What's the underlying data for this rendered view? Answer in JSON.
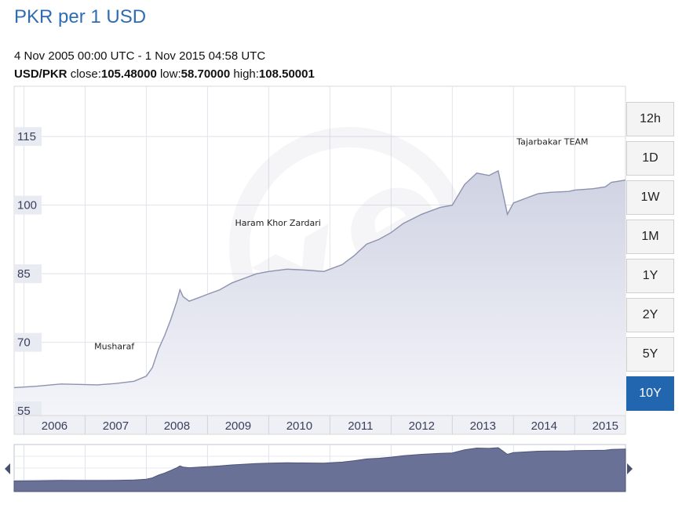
{
  "header": {
    "title": "PKR per 1 USD",
    "date_range": "4 Nov 2005 00:00 UTC - 1 Nov 2015 04:58 UTC",
    "pair": "USD/PKR",
    "close_label": "close:",
    "close_value": "105.48000",
    "low_label": "low:",
    "low_value": "58.70000",
    "high_label": "high:",
    "high_value": "108.50001"
  },
  "range_buttons": [
    "12h",
    "1D",
    "1W",
    "1M",
    "1Y",
    "2Y",
    "5Y",
    "10Y"
  ],
  "active_range": "10Y",
  "colors": {
    "title": "#2e6db4",
    "line": "#8d92b0",
    "area": "#d6d8e6",
    "navigator_area": "#6a7197",
    "active_button": "#2266b0"
  },
  "chart_data": {
    "type": "area",
    "title": "",
    "xlabel": "",
    "ylabel": "",
    "x_ticks": [
      "2006",
      "2007",
      "2008",
      "2009",
      "2010",
      "2011",
      "2012",
      "2013",
      "2014",
      "2015"
    ],
    "y_ticks": [
      55,
      70,
      85,
      100,
      115
    ],
    "xlim": [
      2005.84,
      2015.83
    ],
    "ylim": [
      54,
      126
    ],
    "grid": true,
    "series": [
      {
        "x": [
          2005.84,
          2006.2,
          2006.6,
          2006.9,
          2007.2,
          2007.5,
          2007.8,
          2008.0,
          2008.1,
          2008.2,
          2008.3,
          2008.4,
          2008.5,
          2008.55,
          2008.6,
          2008.7,
          2008.8,
          2009.0,
          2009.2,
          2009.4,
          2009.6,
          2009.8,
          2010.0,
          2010.3,
          2010.6,
          2010.9,
          2011.0,
          2011.2,
          2011.4,
          2011.6,
          2011.8,
          2012.0,
          2012.2,
          2012.5,
          2012.8,
          2013.0,
          2013.2,
          2013.4,
          2013.6,
          2013.75,
          2013.9,
          2014.0,
          2014.2,
          2014.4,
          2014.6,
          2014.9,
          2015.0,
          2015.3,
          2015.5,
          2015.6,
          2015.83
        ],
        "values": [
          60.1,
          60.4,
          60.9,
          60.8,
          60.7,
          61.0,
          61.5,
          62.6,
          64.5,
          68.5,
          71.5,
          75.0,
          79.0,
          81.5,
          80.0,
          79.0,
          79.5,
          80.5,
          81.5,
          83.0,
          84.0,
          85.0,
          85.5,
          86.0,
          85.8,
          85.5,
          86.0,
          87.0,
          89.0,
          91.5,
          92.5,
          94.0,
          96.0,
          98.0,
          99.5,
          100.0,
          104.5,
          107.0,
          106.5,
          107.5,
          98.0,
          100.5,
          101.5,
          102.5,
          102.8,
          103.0,
          103.3,
          103.6,
          104.0,
          105.0,
          105.48
        ]
      }
    ],
    "annotations": [
      "Musharaf",
      "Haram Khor Zardari",
      "Tajarbakar TEAM"
    ]
  }
}
